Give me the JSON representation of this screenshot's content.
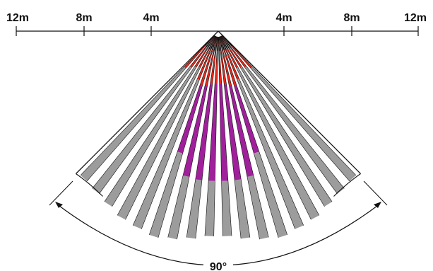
{
  "scale": {
    "left": [
      "12m",
      "8m",
      "4m"
    ],
    "right": [
      "4m",
      "8m",
      "12m"
    ]
  },
  "coverage_angle": "90°",
  "colors": {
    "zone_near": "#e8281c",
    "zone_mid": "#a0209c",
    "zone_far": "#9c9c9c",
    "outline": "#111111"
  }
}
